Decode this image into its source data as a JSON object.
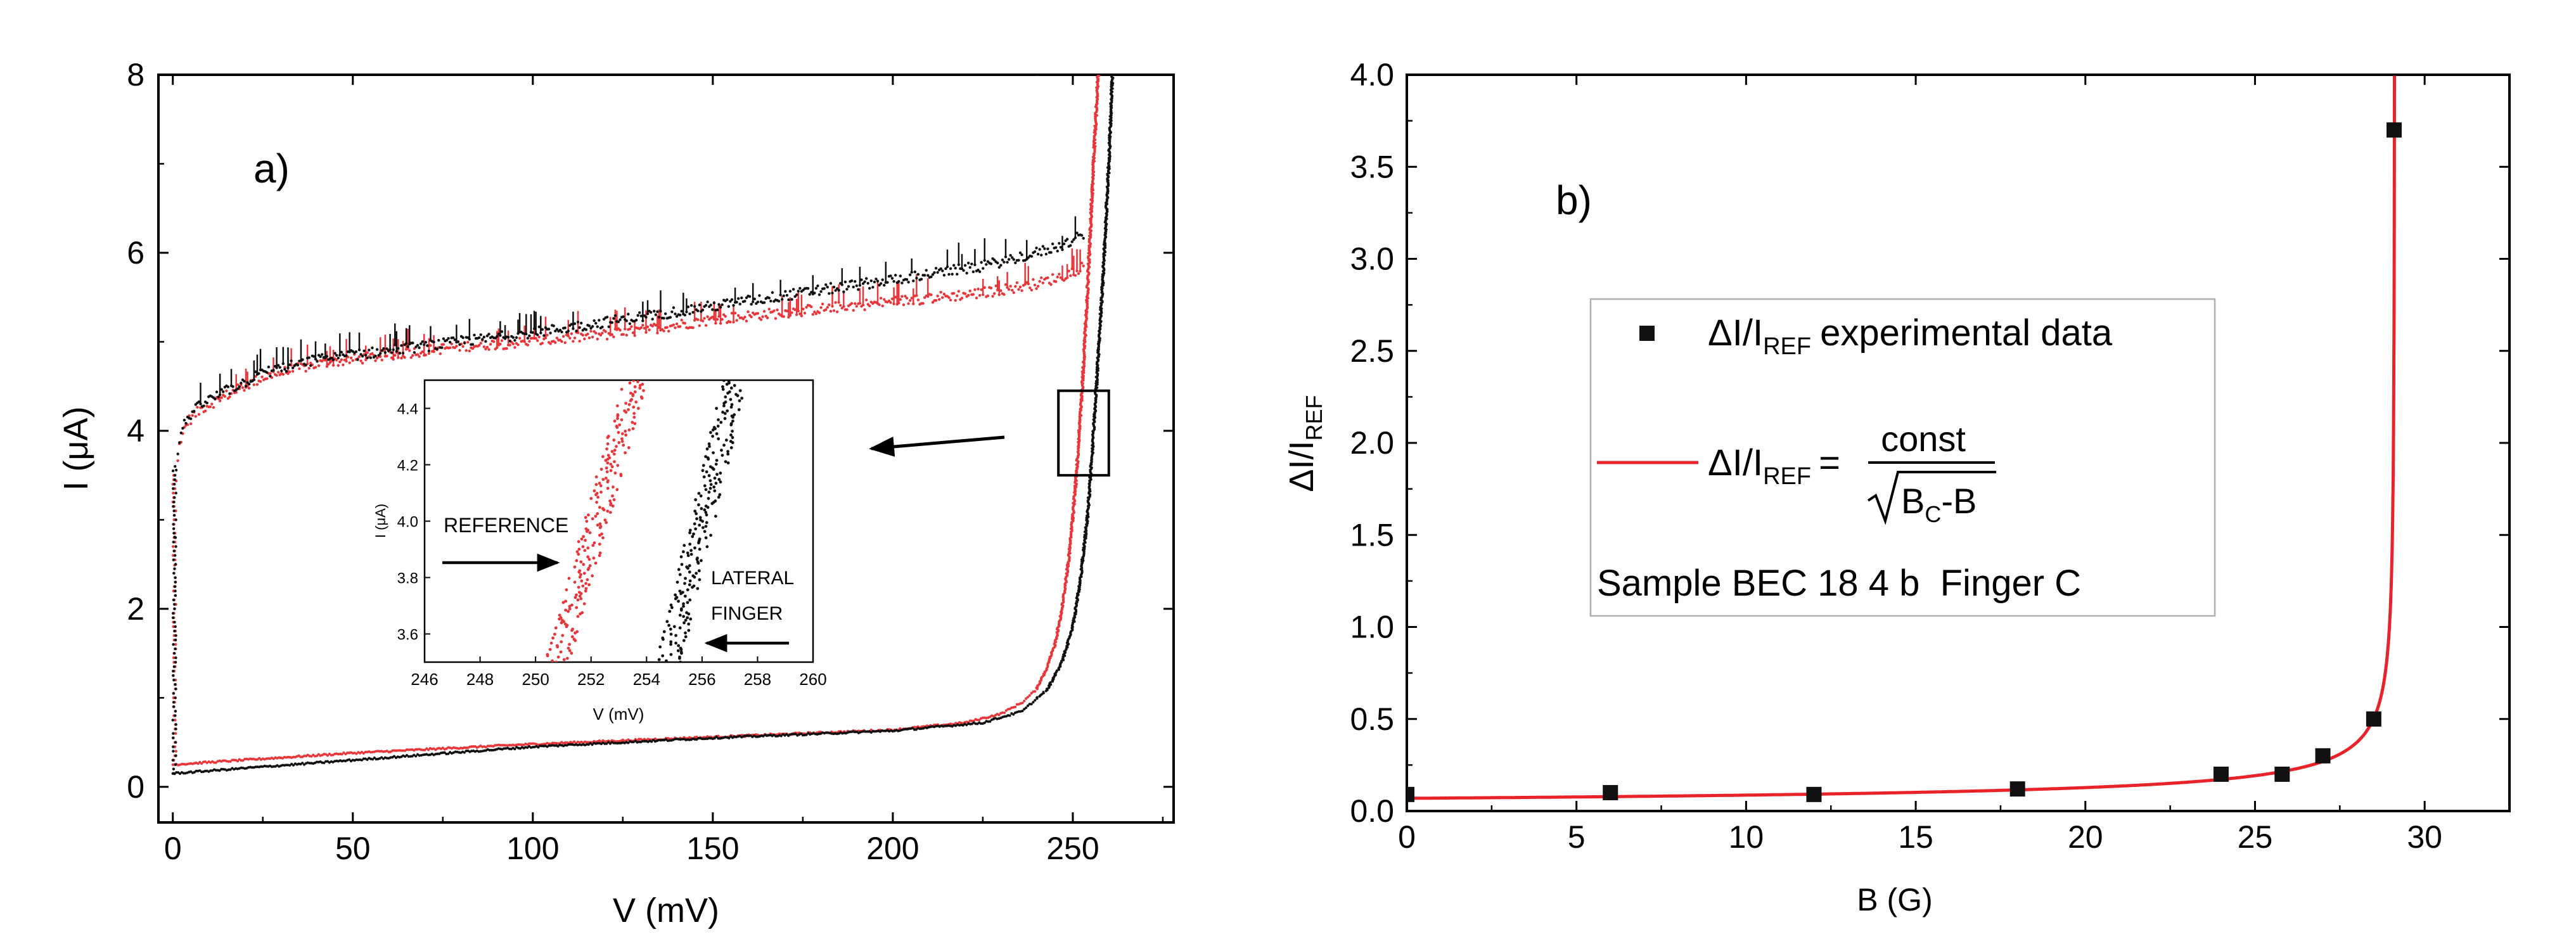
{
  "chart_data": [
    {
      "type": "scatter",
      "panel_label": "a)",
      "xlabel": "V (mV)",
      "ylabel": "I (μA)",
      "xlim": [
        -4,
        278
      ],
      "ylim": [
        -0.4,
        8
      ],
      "xticks": [
        0,
        50,
        100,
        150,
        200,
        250
      ],
      "yticks": [
        0,
        2,
        4,
        6,
        8
      ],
      "series": [
        {
          "name": "reference (red)",
          "color": "#e8363a",
          "sweep_up": {
            "x": [
              0,
              0.5,
              1,
              2,
              4,
              8,
              15,
              25,
              40,
              60,
              80,
              100,
              125,
              150,
              175,
              200,
              225,
              240,
              248,
              253
            ],
            "y": [
              0.25,
              2.5,
              3.5,
              3.9,
              4.1,
              4.25,
              4.4,
              4.6,
              4.75,
              4.85,
              4.95,
              5.0,
              5.1,
              5.25,
              5.35,
              5.45,
              5.55,
              5.65,
              5.75,
              5.85
            ]
          },
          "transition": {
            "x": [
              0,
              50,
              100,
              150,
              200,
              220,
              230,
              236,
              240,
              243,
              245,
              247,
              249,
              251,
              252.5,
              254,
              255.5,
              257
            ],
            "y": [
              0.25,
              0.38,
              0.48,
              0.56,
              0.64,
              0.72,
              0.82,
              0.95,
              1.1,
              1.35,
              1.6,
              2.0,
              2.6,
              3.5,
              4.4,
              5.5,
              6.8,
              8.0
            ]
          }
        },
        {
          "name": "lateral finger (black)",
          "color": "#111111",
          "sweep_up": {
            "x": [
              0,
              0.5,
              1,
              2,
              4,
              8,
              15,
              25,
              40,
              60,
              80,
              100,
              125,
              150,
              175,
              200,
              225,
              240,
              248,
              253
            ],
            "y": [
              0.15,
              2.8,
              3.6,
              3.95,
              4.15,
              4.3,
              4.45,
              4.65,
              4.8,
              4.9,
              5.0,
              5.1,
              5.25,
              5.4,
              5.55,
              5.7,
              5.85,
              6.0,
              6.1,
              6.2
            ]
          },
          "transition": {
            "x": [
              0,
              50,
              100,
              150,
              200,
              225,
              236,
              243,
              247,
              250,
              252,
              254,
              255.5,
              257,
              258.5,
              260,
              261
            ],
            "y": [
              0.15,
              0.3,
              0.45,
              0.55,
              0.63,
              0.72,
              0.85,
              1.1,
              1.4,
              1.8,
              2.3,
              3.0,
              3.8,
              4.8,
              5.8,
              7.0,
              8.0
            ]
          }
        }
      ],
      "zoom_box": {
        "x": [
          246,
          260
        ],
        "y": [
          3.5,
          4.45
        ]
      },
      "inset": {
        "xlabel": "V (mV)",
        "ylabel": "I (μA)",
        "xlim": [
          246,
          260
        ],
        "ylim": [
          3.5,
          4.5
        ],
        "xticks": [
          246,
          248,
          250,
          252,
          254,
          256,
          258,
          260
        ],
        "yticks": [
          3.6,
          3.8,
          4.0,
          4.2,
          4.4
        ],
        "reference": {
          "v_at_3_5": 250.8,
          "v_at_4_5": 253.6
        },
        "lateral_finger": {
          "v_at_3_5": 254.8,
          "v_at_4_5": 257.2
        },
        "annotations": [
          "REFERENCE",
          "LATERAL",
          "FINGER"
        ]
      }
    },
    {
      "type": "scatter",
      "panel_label": "b)",
      "xlabel": "B (G)",
      "ylabel_main": "ΔI/I",
      "ylabel_sub": "REF",
      "xlim": [
        0,
        32.5
      ],
      "ylim": [
        0,
        4.0
      ],
      "xticks": [
        0,
        5,
        10,
        15,
        20,
        25,
        30
      ],
      "yticks": [
        0.0,
        0.5,
        1.0,
        1.5,
        2.0,
        2.5,
        3.0,
        3.5,
        4.0
      ],
      "series": [
        {
          "name": "ΔI/I_REF experimental data",
          "marker": "square",
          "color": "#111111",
          "x": [
            0,
            6,
            12,
            18,
            24,
            25.8,
            27,
            28.5,
            29.1
          ],
          "y": [
            0.09,
            0.1,
            0.09,
            0.12,
            0.2,
            0.2,
            0.3,
            0.5,
            3.7
          ]
        },
        {
          "name": "fit: const / sqrt(B_C - B)",
          "type": "line",
          "color": "#e8232a",
          "const": 0.4,
          "B_C": 29.12
        }
      ],
      "legend": {
        "entry1_main": "ΔI/I",
        "entry1_sub": "REF",
        "entry1_rest": "experimental data",
        "entry2_main": "ΔI/I",
        "entry2_sub": "REF",
        "entry2_eq": "=",
        "entry2_num": "const",
        "entry2_den_main": "B",
        "entry2_den_sub": "C",
        "entry2_den_rest": "-B",
        "sample": "Sample BEC 18 4 b  Finger C"
      }
    }
  ]
}
